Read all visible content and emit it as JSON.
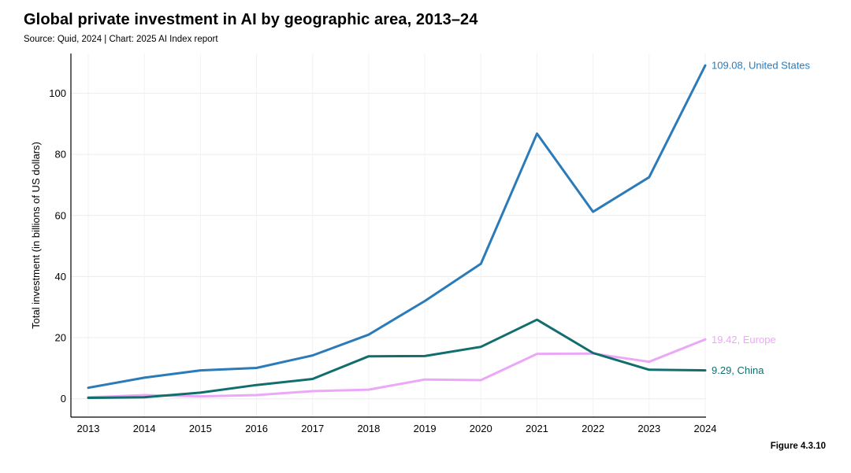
{
  "title": "Global private investment in AI by geographic area, 2013–24",
  "subtitle": "Source: Quid, 2024 | Chart: 2025 AI Index report",
  "figure_label": "Figure 4.3.10",
  "chart_data": {
    "type": "line",
    "title": "Global private investment in AI by geographic area, 2013–24",
    "xlabel": "",
    "ylabel": "Total investment (in billions of US dollars)",
    "x": [
      2013,
      2014,
      2015,
      2016,
      2017,
      2018,
      2019,
      2020,
      2021,
      2022,
      2023,
      2024
    ],
    "ylim": [
      -6,
      113
    ],
    "yticks": [
      0,
      20,
      40,
      60,
      80,
      100
    ],
    "grid": true,
    "series": [
      {
        "name": "United States",
        "color": "#2b7bb9",
        "values": [
          3.6,
          6.9,
          9.3,
          10.1,
          14.2,
          21.0,
          32.0,
          44.2,
          86.8,
          61.2,
          72.5,
          109.08
        ],
        "end_label": "109.08, United States"
      },
      {
        "name": "China",
        "color": "#126e6e",
        "values": [
          0.3,
          0.5,
          2.0,
          4.5,
          6.5,
          13.9,
          14.0,
          17.0,
          25.9,
          15.0,
          9.5,
          9.29
        ],
        "end_label": "9.29, China"
      },
      {
        "name": "Europe",
        "color": "#eba8f7",
        "values": [
          0.5,
          1.2,
          0.8,
          1.2,
          2.5,
          3.0,
          6.3,
          6.1,
          14.7,
          14.8,
          12.1,
          19.42
        ],
        "end_label": "19.42, Europe"
      }
    ]
  }
}
